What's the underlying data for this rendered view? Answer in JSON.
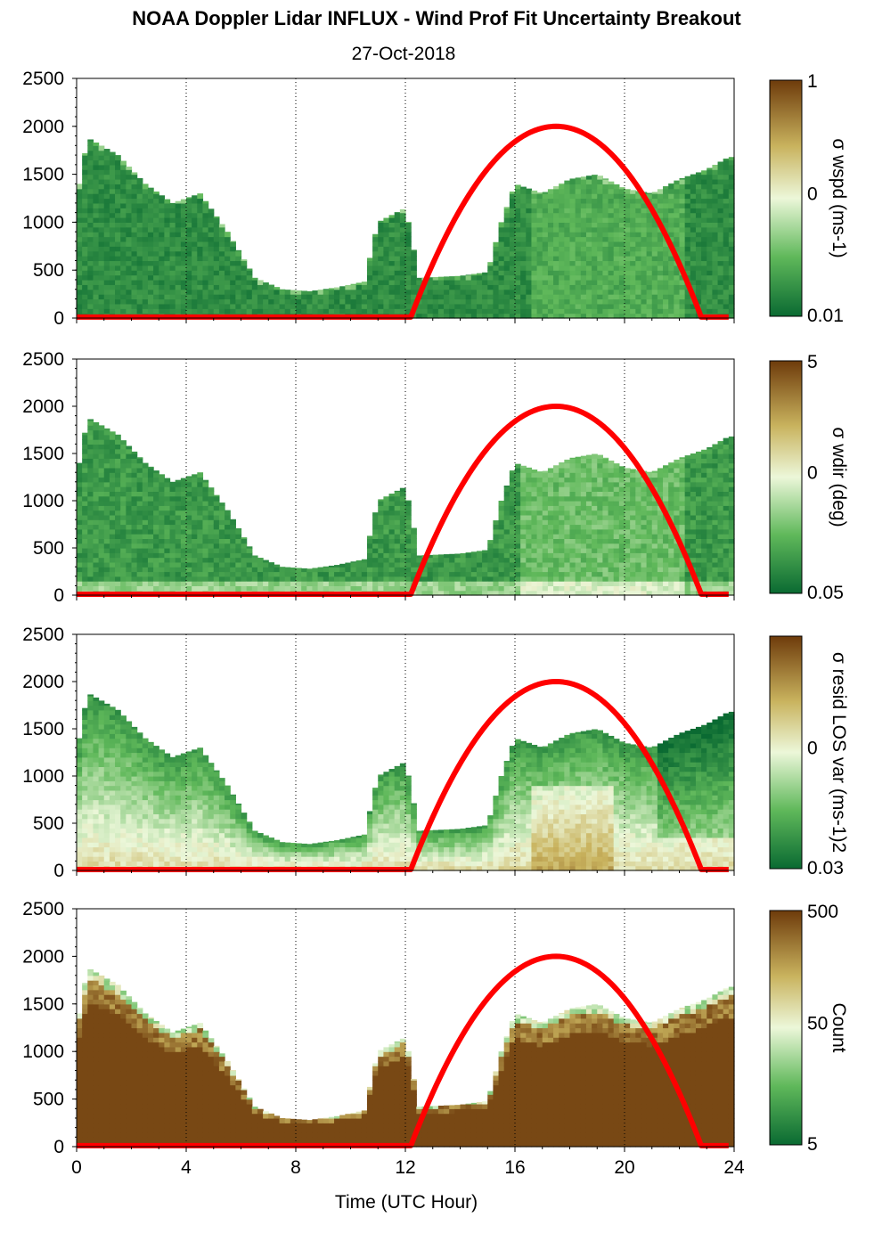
{
  "title": "NOAA Doppler Lidar INFLUX - Wind Prof Fit Uncertainty Breakout",
  "subtitle": "27-Oct-2018",
  "colors": {
    "low": "#0a6a32",
    "mid": "#ecf7d9",
    "high": "#6e3b0b",
    "sun_curve": "#ff0000",
    "baseline": "#e0301e",
    "grid": "#000000"
  },
  "chart_data": [
    {
      "type": "heatmap",
      "panel": "wspd",
      "xlabel": "",
      "ylabel": "",
      "xlim": [
        0,
        24
      ],
      "ylim": [
        0,
        2500
      ],
      "x_ticks": [
        0,
        4,
        8,
        12,
        16,
        20,
        24
      ],
      "y_ticks": [
        "0",
        "500",
        "1000",
        "1500",
        "2000",
        "2500"
      ],
      "grid": "vertical dotted at 4-hour intervals",
      "colorbar": {
        "label": "σ wspd (ms-1)",
        "tick_labels": [
          "1",
          "0",
          "0.01"
        ],
        "scale": "log"
      },
      "profile_top_height": [
        [
          0,
          1240
        ],
        [
          0.4,
          1880
        ],
        [
          1.5,
          1700
        ],
        [
          2.5,
          1400
        ],
        [
          3.5,
          1200
        ],
        [
          4.5,
          1300
        ],
        [
          5.5,
          900
        ],
        [
          6.5,
          420
        ],
        [
          7.5,
          300
        ],
        [
          8.5,
          280
        ],
        [
          9.5,
          320
        ],
        [
          10.5,
          380
        ],
        [
          11,
          1000
        ],
        [
          12,
          1150
        ],
        [
          12.5,
          420
        ],
        [
          14,
          440
        ],
        [
          15,
          480
        ],
        [
          15.5,
          1000
        ],
        [
          16,
          1400
        ],
        [
          17,
          1300
        ],
        [
          18,
          1450
        ],
        [
          19,
          1500
        ],
        [
          20,
          1350
        ],
        [
          21,
          1300
        ],
        [
          22,
          1450
        ],
        [
          23,
          1550
        ],
        [
          23.8,
          1680
        ]
      ],
      "sun_elevation_curve": {
        "start_hour": 12.2,
        "peak_hour": 17.5,
        "end_hour": 22.8,
        "peak_height": 2000
      }
    },
    {
      "type": "heatmap",
      "panel": "wdir",
      "xlabel": "",
      "ylabel": "",
      "xlim": [
        0,
        24
      ],
      "ylim": [
        0,
        2500
      ],
      "x_ticks": [
        0,
        4,
        8,
        12,
        16,
        20,
        24
      ],
      "y_ticks": [
        "0",
        "500",
        "1000",
        "1500",
        "2000",
        "2500"
      ],
      "grid": "vertical dotted at 4-hour intervals",
      "colorbar": {
        "label": "σ wdir (deg)",
        "tick_labels": [
          "5",
          "0",
          "0.05"
        ],
        "scale": "log"
      },
      "profile_top_height": [
        [
          0,
          1240
        ],
        [
          0.4,
          1880
        ],
        [
          1.5,
          1700
        ],
        [
          2.5,
          1400
        ],
        [
          3.5,
          1200
        ],
        [
          4.5,
          1300
        ],
        [
          5.5,
          900
        ],
        [
          6.5,
          420
        ],
        [
          7.5,
          300
        ],
        [
          8.5,
          280
        ],
        [
          9.5,
          320
        ],
        [
          10.5,
          380
        ],
        [
          11,
          1000
        ],
        [
          12,
          1150
        ],
        [
          12.5,
          420
        ],
        [
          14,
          440
        ],
        [
          15,
          480
        ],
        [
          15.5,
          1000
        ],
        [
          16,
          1400
        ],
        [
          17,
          1300
        ],
        [
          18,
          1450
        ],
        [
          19,
          1500
        ],
        [
          20,
          1350
        ],
        [
          21,
          1300
        ],
        [
          22,
          1450
        ],
        [
          23,
          1550
        ],
        [
          23.8,
          1680
        ]
      ],
      "sun_elevation_curve": {
        "start_hour": 12.2,
        "peak_hour": 17.5,
        "end_hour": 22.8,
        "peak_height": 2000
      }
    },
    {
      "type": "heatmap",
      "panel": "resid",
      "xlabel": "",
      "ylabel": "",
      "xlim": [
        0,
        24
      ],
      "ylim": [
        0,
        2500
      ],
      "x_ticks": [
        0,
        4,
        8,
        12,
        16,
        20,
        24
      ],
      "y_ticks": [
        "0",
        "500",
        "1000",
        "1500",
        "2000",
        "2500"
      ],
      "grid": "vertical dotted at 4-hour intervals",
      "colorbar": {
        "label": "σ resid LOS var (ms-1)2",
        "tick_labels": [
          "",
          "0",
          "0.03"
        ],
        "scale": "log"
      },
      "profile_top_height": [
        [
          0,
          1240
        ],
        [
          0.4,
          1880
        ],
        [
          1.5,
          1700
        ],
        [
          2.5,
          1400
        ],
        [
          3.5,
          1200
        ],
        [
          4.5,
          1300
        ],
        [
          5.5,
          900
        ],
        [
          6.5,
          420
        ],
        [
          7.5,
          300
        ],
        [
          8.5,
          280
        ],
        [
          9.5,
          320
        ],
        [
          10.5,
          380
        ],
        [
          11,
          1000
        ],
        [
          12,
          1150
        ],
        [
          12.5,
          420
        ],
        [
          14,
          440
        ],
        [
          15,
          480
        ],
        [
          15.5,
          1000
        ],
        [
          16,
          1400
        ],
        [
          17,
          1300
        ],
        [
          18,
          1450
        ],
        [
          19,
          1500
        ],
        [
          20,
          1350
        ],
        [
          21,
          1300
        ],
        [
          22,
          1450
        ],
        [
          23,
          1550
        ],
        [
          23.8,
          1680
        ]
      ],
      "sun_elevation_curve": {
        "start_hour": 12.2,
        "peak_hour": 17.5,
        "end_hour": 22.8,
        "peak_height": 2000
      }
    },
    {
      "type": "heatmap",
      "panel": "count",
      "xlabel": "Time (UTC Hour)",
      "ylabel": "",
      "xlim": [
        0,
        24
      ],
      "ylim": [
        0,
        2500
      ],
      "x_ticks": [
        0,
        4,
        8,
        12,
        16,
        20,
        24
      ],
      "y_ticks": [
        "0",
        "500",
        "1000",
        "1500",
        "2000",
        "2500"
      ],
      "grid": "vertical dotted at 4-hour intervals",
      "colorbar": {
        "label": "Count",
        "tick_labels": [
          "500",
          "50",
          "5"
        ],
        "scale": "log"
      },
      "profile_top_height": [
        [
          0,
          1240
        ],
        [
          0.4,
          1880
        ],
        [
          1.5,
          1700
        ],
        [
          2.5,
          1400
        ],
        [
          3.5,
          1200
        ],
        [
          4.5,
          1300
        ],
        [
          5.5,
          900
        ],
        [
          6.5,
          420
        ],
        [
          7.5,
          300
        ],
        [
          8.5,
          280
        ],
        [
          9.5,
          320
        ],
        [
          10.5,
          380
        ],
        [
          11,
          1000
        ],
        [
          12,
          1150
        ],
        [
          12.5,
          420
        ],
        [
          14,
          440
        ],
        [
          15,
          480
        ],
        [
          15.5,
          1000
        ],
        [
          16,
          1400
        ],
        [
          17,
          1300
        ],
        [
          18,
          1450
        ],
        [
          19,
          1500
        ],
        [
          20,
          1350
        ],
        [
          21,
          1300
        ],
        [
          22,
          1450
        ],
        [
          23,
          1550
        ],
        [
          23.8,
          1680
        ]
      ],
      "sun_elevation_curve": {
        "start_hour": 12.2,
        "peak_hour": 17.5,
        "end_hour": 22.8,
        "peak_height": 2000
      }
    }
  ]
}
